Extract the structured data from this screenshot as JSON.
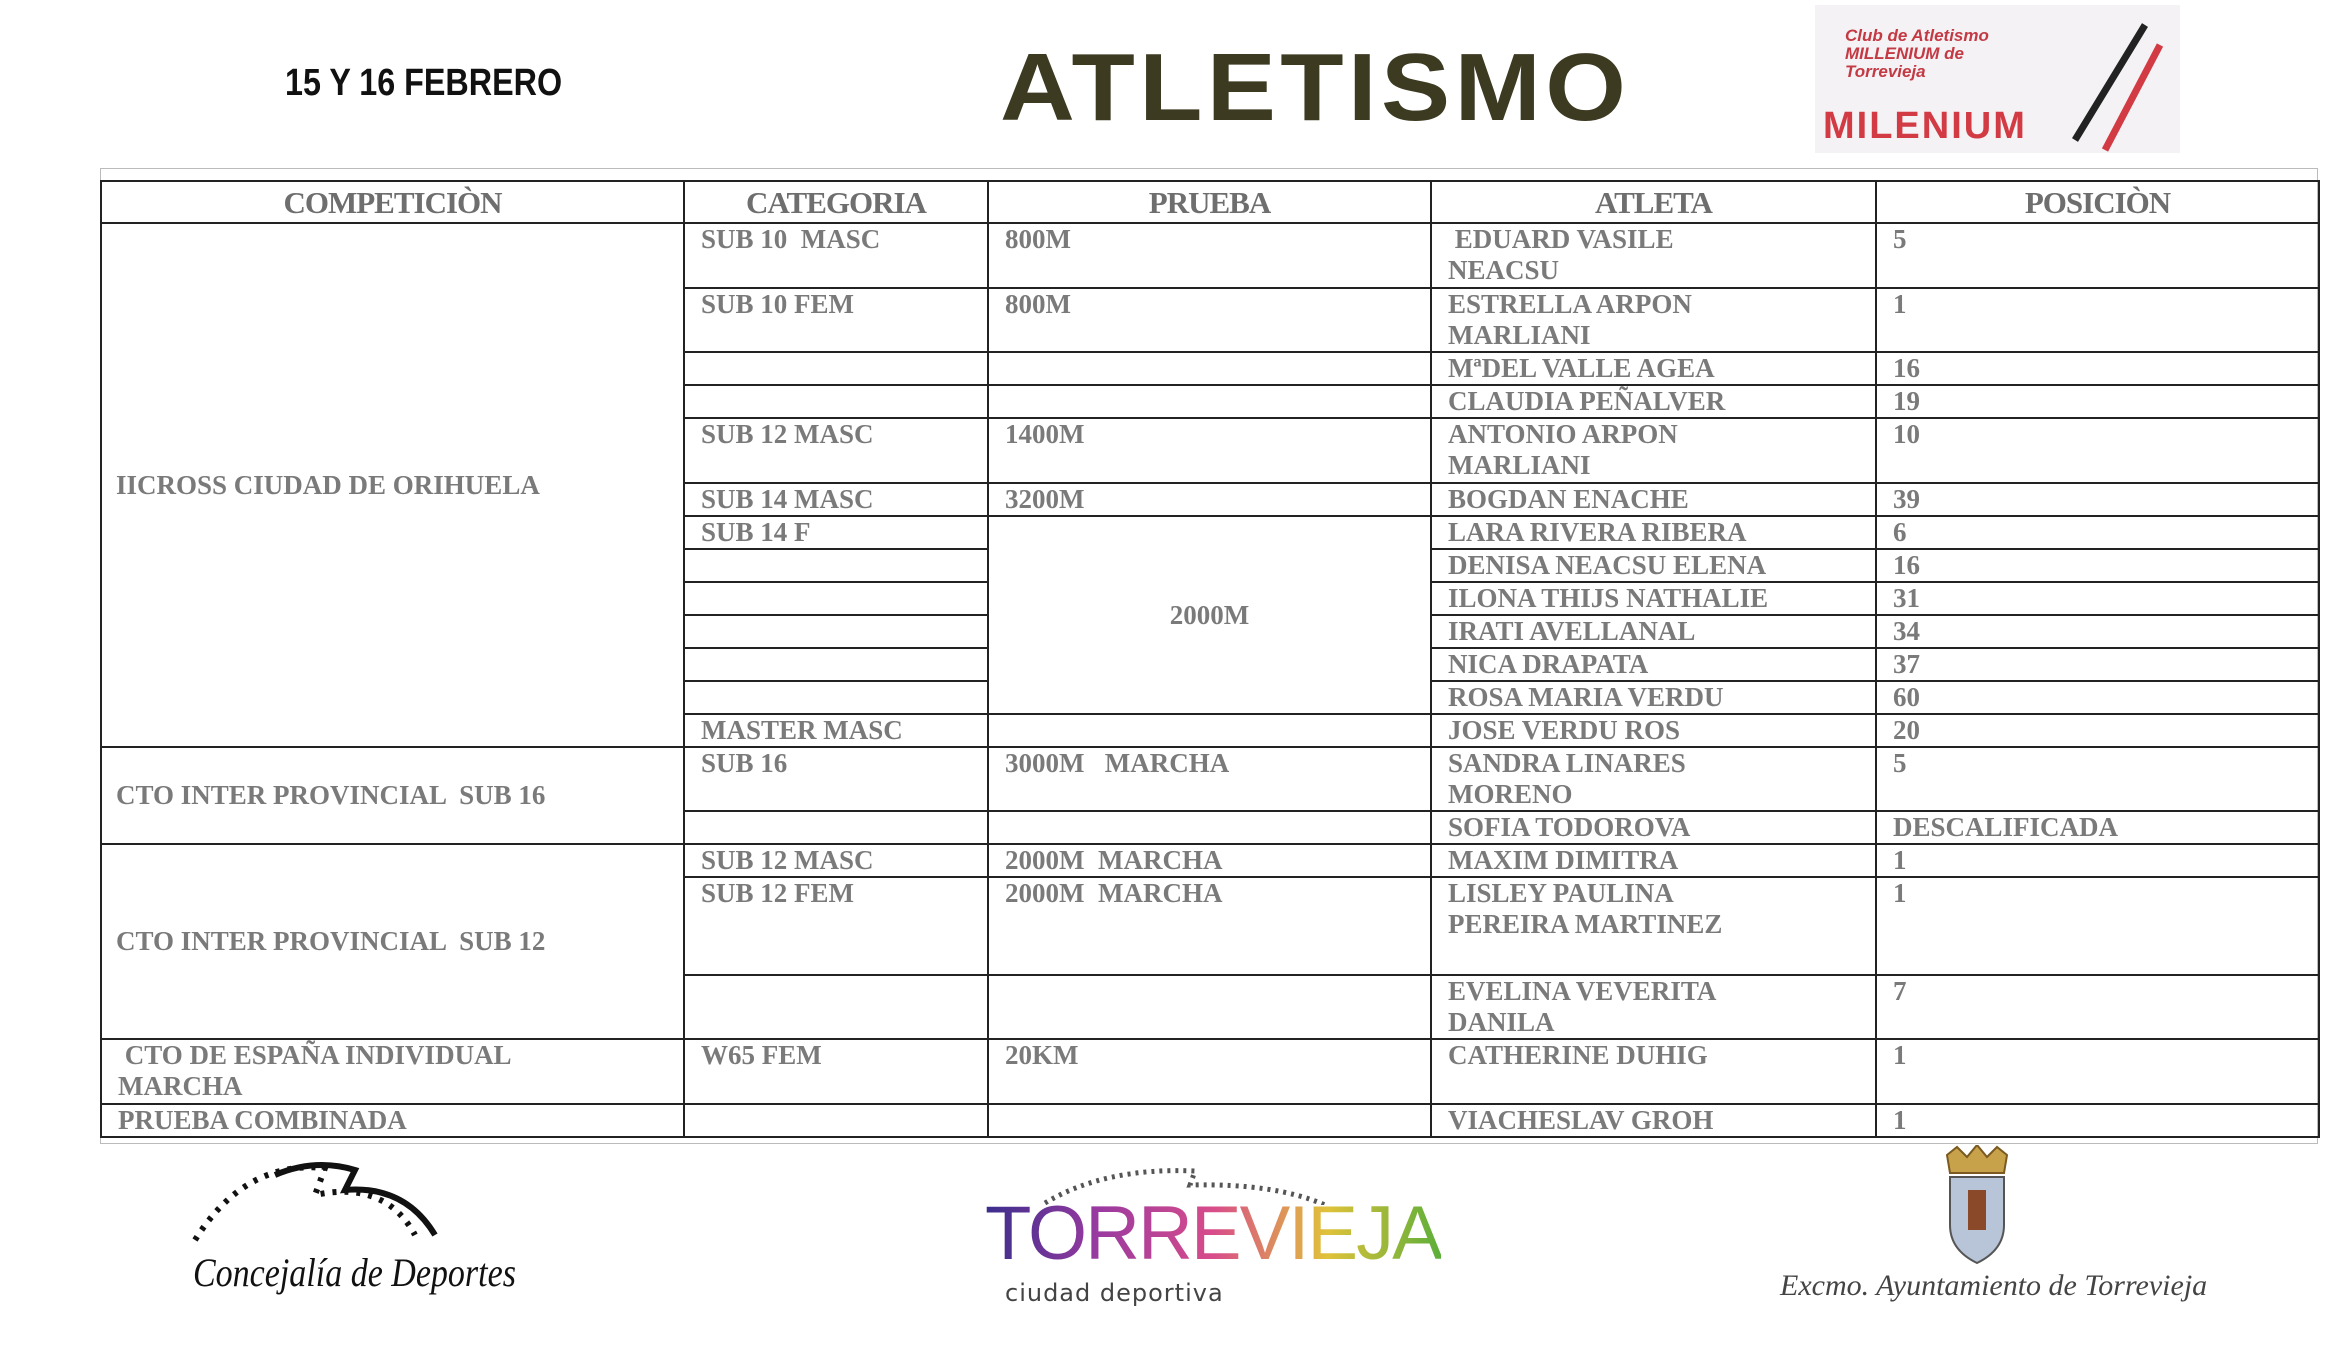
{
  "header": {
    "date": "15 Y 16 FEBRERO",
    "logo_title": "ATLETISMO",
    "club_small_text": "Club de Atletismo MILLENIUM de Torrevieja",
    "club_name": "MILENIUM",
    "colors": {
      "logo_title": "#3d3a22",
      "club_red": "#d23a44"
    }
  },
  "table": {
    "columns": [
      "COMPETICIÒN",
      "CATEGORIA",
      "PRUEBA",
      "ATLETA",
      "POSICIÒN"
    ],
    "rows": [
      {
        "competicion": "IICROSS CIUDAD DE ORIHUELA",
        "categoria": "SUB 10  MASC",
        "prueba": "800M",
        "atleta": " EDUARD VASILE\nNEACSU",
        "posicion": "5"
      },
      {
        "categoria": "SUB 10 FEM",
        "prueba": "800M",
        "atleta": "ESTRELLA ARPON\nMARLIANI",
        "posicion": "1"
      },
      {
        "categoria": "",
        "prueba": "",
        "atleta": "MªDEL VALLE AGEA",
        "posicion": "16"
      },
      {
        "categoria": "",
        "prueba": "",
        "atleta": "CLAUDIA PEÑALVER",
        "posicion": "19"
      },
      {
        "categoria": "SUB 12 MASC",
        "prueba": "1400M",
        "atleta": "ANTONIO ARPON\nMARLIANI",
        "posicion": "10"
      },
      {
        "categoria": "SUB 14 MASC",
        "prueba": "3200M",
        "atleta": "BOGDAN ENACHE",
        "posicion": "39"
      },
      {
        "categoria": "SUB 14 F",
        "prueba": "2000M",
        "atleta": "LARA RIVERA RIBERA",
        "posicion": "6"
      },
      {
        "categoria": "",
        "atleta": "DENISA NEACSU ELENA",
        "posicion": "16"
      },
      {
        "categoria": "",
        "atleta": "ILONA THIJS NATHALIE",
        "posicion": "31"
      },
      {
        "categoria": "",
        "atleta": "IRATI AVELLANAL",
        "posicion": "34"
      },
      {
        "categoria": "",
        "atleta": "NICA DRAPATA",
        "posicion": "37"
      },
      {
        "categoria": "",
        "atleta": "ROSA MARIA VERDU",
        "posicion": "60"
      },
      {
        "categoria": "MASTER MASC",
        "prueba": "",
        "atleta": "JOSE VERDU ROS",
        "posicion": "20"
      },
      {
        "competicion": "CTO INTER PROVINCIAL  SUB 16",
        "categoria": "SUB 16",
        "prueba": "3000M   MARCHA",
        "atleta": "SANDRA LINARES\nMORENO",
        "posicion": "5"
      },
      {
        "categoria": "",
        "prueba": "",
        "atleta": "SOFIA TODOROVA",
        "posicion": "DESCALIFICADA"
      },
      {
        "competicion": "CTO INTER PROVINCIAL  SUB 12",
        "categoria": "SUB 12 MASC",
        "prueba": "2000M  MARCHA",
        "atleta": "MAXIM DIMITRA",
        "posicion": "1"
      },
      {
        "categoria": "SUB 12 FEM",
        "prueba": "2000M  MARCHA",
        "atleta": "LISLEY PAULINA\nPEREIRA MARTINEZ",
        "posicion": "1"
      },
      {
        "categoria": "",
        "prueba": "",
        "atleta": "EVELINA VEVERITA\nDANILA",
        "posicion": "7"
      },
      {
        "competicion": " CTO DE ESPAÑA INDIVIDUAL\nMARCHA",
        "categoria": "W65 FEM",
        "prueba": "20KM",
        "atleta": "CATHERINE DUHIG",
        "posicion": "1"
      },
      {
        "competicion": "PRUEBA COMBINADA",
        "categoria": "",
        "prueba": "",
        "atleta": "VIACHESLAV GROH",
        "posicion": "1"
      }
    ]
  },
  "footer": {
    "concejalia": "Concejalía de Deportes",
    "torrevieja": "TORREVIEJA",
    "torrevieja_sub": "ciudad deportiva",
    "ayuntamiento": "Excmo. Ayuntamiento de Torrevieja"
  }
}
